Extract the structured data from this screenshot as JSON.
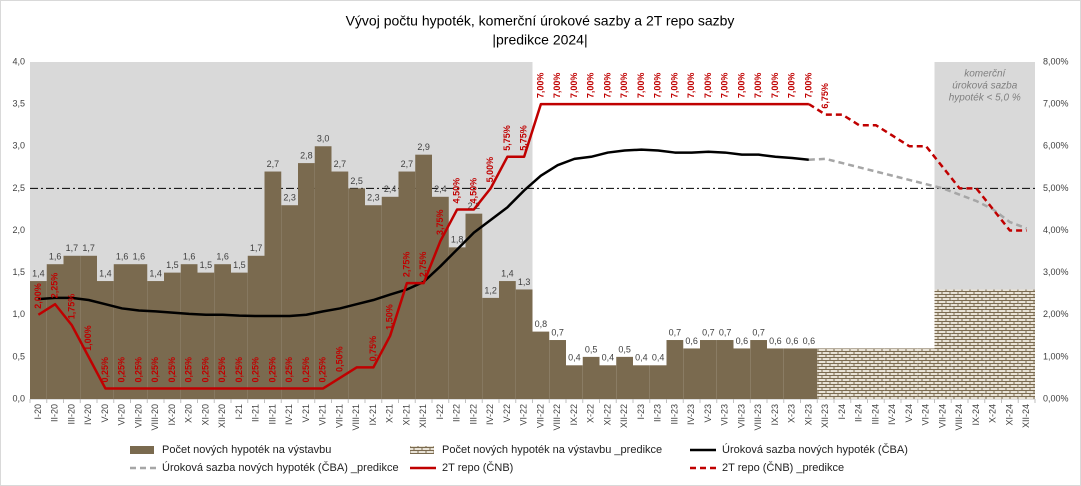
{
  "chart_data": {
    "type": "combo",
    "title": [
      "Vývoj počtu hypoték, komerční úrokové sazby a 2T repo sazby",
      "|predikce 2024|"
    ],
    "categories": [
      "I-20",
      "II-20",
      "III-20",
      "IV-20",
      "V-20",
      "VI-20",
      "VII-20",
      "VIII-20",
      "IX-20",
      "X-20",
      "XI-20",
      "XII-20",
      "I-21",
      "II-21",
      "III-21",
      "IV-21",
      "V-21",
      "VI-21",
      "VII-21",
      "VIII-21",
      "IX-21",
      "X-21",
      "XI-21",
      "XII-21",
      "I-22",
      "II-22",
      "III-22",
      "IV-22",
      "V-22",
      "VI-22",
      "VII-22",
      "VIII-22",
      "IX-22",
      "X-22",
      "XI-22",
      "XII-22",
      "I-23",
      "II-23",
      "III-23",
      "IV-23",
      "V-23",
      "VI-23",
      "VII-23",
      "VIII-23",
      "IX-23",
      "X-23",
      "XI-23",
      "XII-23",
      "I-24",
      "II-24",
      "III-24",
      "IV-24",
      "V-24",
      "VI-24",
      "VII-24",
      "VIII-24",
      "IX-24",
      "X-24",
      "XI-24",
      "XII-24"
    ],
    "ylim": [
      0,
      4
    ],
    "yticks": [
      {
        "value": 0,
        "label": "0,0"
      },
      {
        "value": 0.5,
        "label": "0,5"
      },
      {
        "value": 1,
        "label": "1,0"
      },
      {
        "value": 1.5,
        "label": "1,5"
      },
      {
        "value": 2,
        "label": "2,0"
      },
      {
        "value": 2.5,
        "label": "2,5"
      },
      {
        "value": 3,
        "label": "3,0"
      },
      {
        "value": 3.5,
        "label": "3,5"
      },
      {
        "value": 4,
        "label": "4,0"
      }
    ],
    "y2lim": [
      0,
      8
    ],
    "y2ticks": [
      {
        "value": 0,
        "label": "0,00%"
      },
      {
        "value": 1,
        "label": "1,00%"
      },
      {
        "value": 2,
        "label": "2,00%"
      },
      {
        "value": 3,
        "label": "3,00%"
      },
      {
        "value": 4,
        "label": "4,00%"
      },
      {
        "value": 5,
        "label": "5,00%"
      },
      {
        "value": 6,
        "label": "6,00%"
      },
      {
        "value": 7,
        "label": "7,00%"
      },
      {
        "value": 8,
        "label": "8,00%"
      }
    ],
    "reference_line": 2.5,
    "shaded": [
      [
        "I-20",
        "VI-22"
      ],
      [
        "VII-24",
        "XII-24"
      ]
    ],
    "annotation": [
      "komerční",
      "úroková sazba",
      "hypoték < 5,0 %"
    ],
    "legend": "bottom",
    "series": [
      {
        "name": "Počet nových hypoték na výstavbu",
        "type": "bar",
        "color": "#7a6a4f",
        "values": [
          1.4,
          1.6,
          1.7,
          1.7,
          1.4,
          1.6,
          1.6,
          1.4,
          1.5,
          1.6,
          1.5,
          1.6,
          1.5,
          1.7,
          2.7,
          2.3,
          2.8,
          3.0,
          2.7,
          2.5,
          2.3,
          2.4,
          2.7,
          2.9,
          2.4,
          1.8,
          2.2,
          1.2,
          1.4,
          1.3,
          0.8,
          0.7,
          0.4,
          0.5,
          0.4,
          0.5,
          0.4,
          0.4,
          0.7,
          0.6,
          0.7,
          0.7,
          0.6,
          0.7,
          0.6,
          0.6,
          0.6,
          null,
          null,
          null,
          null,
          null,
          null,
          null,
          null,
          null,
          null,
          null,
          null,
          null
        ],
        "value_labels": [
          "1,4",
          "1,6",
          "1,7",
          "1,7",
          "1,4",
          "1,6",
          "1,6",
          "1,4",
          "1,5",
          "1,6",
          "1,5",
          "1,6",
          "1,5",
          "1,7",
          "2,7",
          "2,3",
          "2,8",
          "3,0",
          "2,7",
          "2,5",
          "2,3",
          "2,4",
          "2,7",
          "2,9",
          "2,4",
          "1,8",
          "2,2",
          "1,2",
          "1,4",
          "1,3",
          "0,8",
          "0,7",
          "0,4",
          "0,5",
          "0,4",
          "0,5",
          "0,4",
          "0,4",
          "0,7",
          "0,6",
          "0,7",
          "0,7",
          "0,6",
          "0,7",
          "0,6",
          "0,6",
          "0,6",
          null,
          null,
          null,
          null,
          null,
          null,
          null,
          null,
          null,
          null,
          null,
          null,
          null
        ]
      },
      {
        "name": "Počet nových hypoték na výstavbu _predikce",
        "type": "bar",
        "pattern": "brick",
        "color": "#7a6a4f",
        "values": [
          null,
          null,
          null,
          null,
          null,
          null,
          null,
          null,
          null,
          null,
          null,
          null,
          null,
          null,
          null,
          null,
          null,
          null,
          null,
          null,
          null,
          null,
          null,
          null,
          null,
          null,
          null,
          null,
          null,
          null,
          null,
          null,
          null,
          null,
          null,
          null,
          null,
          null,
          null,
          null,
          null,
          null,
          null,
          null,
          null,
          null,
          null,
          0.6,
          0.6,
          0.6,
          0.6,
          0.6,
          0.6,
          0.6,
          1.3,
          1.3,
          1.3,
          1.3,
          1.3,
          1.3
        ]
      },
      {
        "name": "Úroková sazba nových hypoték (ČBA)",
        "type": "line",
        "axis": "y2",
        "color": "#000000",
        "values": [
          2.37,
          2.4,
          2.4,
          2.35,
          2.25,
          2.15,
          2.1,
          2.08,
          2.05,
          2.02,
          2.0,
          2.0,
          1.98,
          1.97,
          1.97,
          1.97,
          2.0,
          2.08,
          2.15,
          2.25,
          2.35,
          2.48,
          2.6,
          2.78,
          3.15,
          3.55,
          3.95,
          4.25,
          4.55,
          4.95,
          5.3,
          5.55,
          5.7,
          5.75,
          5.85,
          5.9,
          5.92,
          5.9,
          5.85,
          5.85,
          5.87,
          5.85,
          5.8,
          5.8,
          5.75,
          5.72,
          5.68,
          null,
          null,
          null,
          null,
          null,
          null,
          null,
          null,
          null,
          null,
          null,
          null,
          null
        ]
      },
      {
        "name": "Úroková sazba nových hypoték (ČBA) _predikce",
        "type": "line",
        "axis": "y2",
        "color": "#a6a6a6",
        "dash": true,
        "values": [
          null,
          null,
          null,
          null,
          null,
          null,
          null,
          null,
          null,
          null,
          null,
          null,
          null,
          null,
          null,
          null,
          null,
          null,
          null,
          null,
          null,
          null,
          null,
          null,
          null,
          null,
          null,
          null,
          null,
          null,
          null,
          null,
          null,
          null,
          null,
          null,
          null,
          null,
          null,
          null,
          null,
          null,
          null,
          null,
          null,
          null,
          5.68,
          5.7,
          5.6,
          5.5,
          5.4,
          5.3,
          5.2,
          5.1,
          5.0,
          4.85,
          4.7,
          4.5,
          4.2,
          4.05
        ]
      },
      {
        "name": "2T repo (ČNB)",
        "type": "line",
        "axis": "y2",
        "color": "#c00000",
        "values": [
          2.0,
          2.25,
          1.75,
          1.0,
          0.25,
          0.25,
          0.25,
          0.25,
          0.25,
          0.25,
          0.25,
          0.25,
          0.25,
          0.25,
          0.25,
          0.25,
          0.25,
          0.25,
          0.5,
          0.75,
          0.75,
          1.5,
          2.75,
          2.75,
          3.75,
          4.5,
          4.5,
          5.0,
          5.75,
          5.75,
          7.0,
          7.0,
          7.0,
          7.0,
          7.0,
          7.0,
          7.0,
          7.0,
          7.0,
          7.0,
          7.0,
          7.0,
          7.0,
          7.0,
          7.0,
          7.0,
          7.0,
          null,
          null,
          null,
          null,
          null,
          null,
          null,
          null,
          null,
          null,
          null,
          null,
          null
        ],
        "value_labels": [
          "2,00%",
          "2,25%",
          "1,75%",
          "1,00%",
          "0,25%",
          "0,25%",
          "0,25%",
          "0,25%",
          "0,25%",
          "0,25%",
          "0,25%",
          "0,25%",
          "0,25%",
          "0,25%",
          "0,25%",
          "0,25%",
          "0,25%",
          "0,25%",
          "0,50%",
          null,
          "0,75%",
          "1,50%",
          "2,75%",
          "2,75%",
          "3,75%",
          "4,50%",
          "4,50%",
          "5,00%",
          "5,75%",
          "5,75%",
          "7,00%",
          "7,00%",
          "7,00%",
          "7,00%",
          "7,00%",
          "7,00%",
          "7,00%",
          "7,00%",
          "7,00%",
          "7,00%",
          "7,00%",
          "7,00%",
          "7,00%",
          "7,00%",
          "7,00%",
          "7,00%",
          "7,00%",
          null,
          null,
          null,
          null,
          null,
          null,
          null,
          null,
          null,
          null,
          null,
          null,
          null
        ]
      },
      {
        "name": "2T repo (ČNB) _predikce",
        "type": "line",
        "axis": "y2",
        "color": "#c00000",
        "dash": true,
        "values": [
          null,
          null,
          null,
          null,
          null,
          null,
          null,
          null,
          null,
          null,
          null,
          null,
          null,
          null,
          null,
          null,
          null,
          null,
          null,
          null,
          null,
          null,
          null,
          null,
          null,
          null,
          null,
          null,
          null,
          null,
          null,
          null,
          null,
          null,
          null,
          null,
          null,
          null,
          null,
          null,
          null,
          null,
          null,
          null,
          null,
          null,
          7.0,
          6.75,
          6.75,
          6.5,
          6.5,
          6.25,
          6.0,
          6.0,
          5.5,
          5.0,
          5.0,
          4.5,
          4.0,
          4.0
        ],
        "value_labels": [
          null,
          null,
          null,
          null,
          null,
          null,
          null,
          null,
          null,
          null,
          null,
          null,
          null,
          null,
          null,
          null,
          null,
          null,
          null,
          null,
          null,
          null,
          null,
          null,
          null,
          null,
          null,
          null,
          null,
          null,
          null,
          null,
          null,
          null,
          null,
          null,
          null,
          null,
          null,
          null,
          null,
          null,
          null,
          null,
          null,
          null,
          null,
          "6,75%",
          null,
          null,
          null,
          null,
          null,
          null,
          null,
          null,
          null,
          null,
          null,
          null
        ]
      }
    ]
  }
}
